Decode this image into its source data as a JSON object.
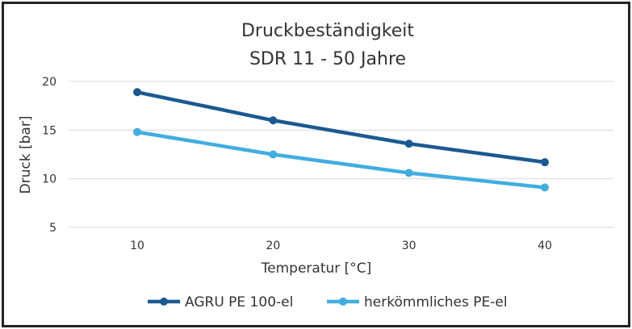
{
  "chart_data": {
    "type": "line",
    "title": "Druckbeständigkeit",
    "subtitle": "SDR 11 - 50 Jahre",
    "xlabel": "Temperatur [°C]",
    "ylabel": "Druck [bar]",
    "x": [
      10,
      20,
      30,
      40
    ],
    "x_ticks": [
      "10",
      "20",
      "30",
      "40"
    ],
    "y_ticks": [
      "5",
      "10",
      "15",
      "20"
    ],
    "ylim": [
      5,
      20
    ],
    "grid": true,
    "legend_position": "bottom",
    "series": [
      {
        "name": "AGRU PE 100-el",
        "color": "#1b5a91",
        "values": [
          18.9,
          16.0,
          13.6,
          11.7
        ]
      },
      {
        "name": "herkömmliches PE-el",
        "color": "#41ade0",
        "values": [
          14.8,
          12.5,
          10.6,
          9.1
        ]
      }
    ]
  }
}
